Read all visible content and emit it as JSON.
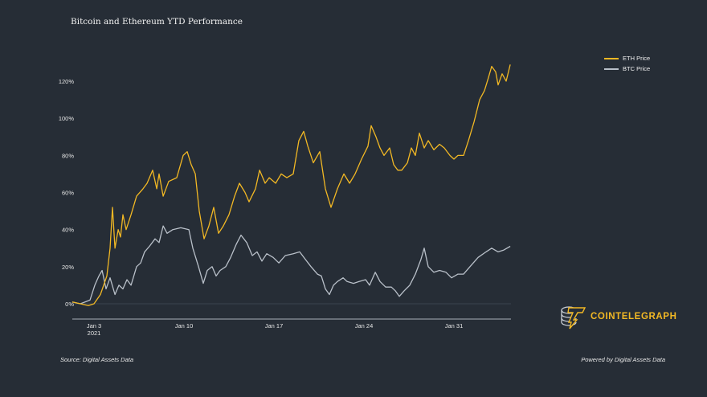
{
  "chart_data": {
    "type": "line",
    "title": "Bitcoin and Ethereum YTD Performance",
    "xlabel": "",
    "ylabel": "",
    "x_units": "days since Jan 1 2021",
    "xlim": [
      0,
      34.6
    ],
    "ylim": [
      -8,
      130
    ],
    "yticks": [
      0,
      20,
      40,
      60,
      80,
      100,
      120
    ],
    "ytick_labels": [
      "0%",
      "20%",
      "40%",
      "60%",
      "80%",
      "100%",
      "120%"
    ],
    "xticks": [
      2,
      9,
      16,
      23,
      30
    ],
    "xtick_labels": [
      "Jan 3",
      "Jan 10",
      "Jan 17",
      "Jan 24",
      "Jan 31"
    ],
    "xtick_year": "2021",
    "legend_position": "top-right",
    "series": [
      {
        "name": "ETH Price",
        "color": "#f2b824",
        "x": [
          0.31,
          0.94,
          1.56,
          2.0,
          2.5,
          3.0,
          3.25,
          3.44,
          3.63,
          3.88,
          4.06,
          4.25,
          4.5,
          4.88,
          5.31,
          5.81,
          6.13,
          6.56,
          6.88,
          7.06,
          7.38,
          7.81,
          8.44,
          8.94,
          9.25,
          9.56,
          9.88,
          10.19,
          10.56,
          10.94,
          11.31,
          11.69,
          12.06,
          12.5,
          12.94,
          13.31,
          13.75,
          14.06,
          14.56,
          14.88,
          15.31,
          15.63,
          16.13,
          16.56,
          17.0,
          17.5,
          17.94,
          18.31,
          18.63,
          19.06,
          19.56,
          20.0,
          20.44,
          20.94,
          21.44,
          21.88,
          22.31,
          22.81,
          23.31,
          23.56,
          23.94,
          24.25,
          24.56,
          25.0,
          25.31,
          25.63,
          25.94,
          26.38,
          26.69,
          27.0,
          27.31,
          27.69,
          28.0,
          28.44,
          28.88,
          29.25,
          29.69,
          30.0,
          30.31,
          30.75,
          31.13,
          31.56,
          32.0,
          32.38,
          32.69,
          32.94,
          33.25,
          33.44,
          33.75,
          34.06,
          34.38
        ],
        "y": [
          1,
          0,
          -1,
          0,
          5,
          15,
          30,
          52,
          30,
          40,
          36,
          48,
          40,
          48,
          58,
          62,
          65,
          72,
          62,
          70,
          58,
          66,
          68,
          80,
          82,
          75,
          70,
          50,
          35,
          42,
          52,
          38,
          42,
          48,
          58,
          65,
          60,
          55,
          62,
          72,
          65,
          68,
          65,
          70,
          68,
          70,
          88,
          93,
          85,
          76,
          82,
          62,
          52,
          62,
          70,
          65,
          70,
          78,
          85,
          96,
          90,
          84,
          80,
          84,
          75,
          72,
          72,
          76,
          84,
          80,
          92,
          84,
          88,
          83,
          86,
          84,
          80,
          78,
          80,
          80,
          88,
          98,
          110,
          115,
          122,
          128,
          125,
          118,
          124,
          120,
          129
        ]
      },
      {
        "name": "BTC Price",
        "color": "#b9c0c9",
        "x": [
          0.31,
          0.94,
          1.69,
          2.06,
          2.38,
          2.63,
          2.94,
          3.25,
          3.63,
          3.94,
          4.25,
          4.56,
          4.88,
          5.31,
          5.63,
          5.94,
          6.31,
          6.75,
          7.06,
          7.38,
          7.69,
          8.13,
          8.75,
          9.38,
          9.69,
          10.13,
          10.5,
          10.81,
          11.19,
          11.5,
          11.81,
          12.25,
          12.63,
          13.06,
          13.44,
          13.88,
          14.31,
          14.69,
          15.06,
          15.44,
          15.94,
          16.38,
          16.88,
          17.5,
          18.0,
          18.44,
          18.88,
          19.38,
          19.69,
          20.0,
          20.31,
          20.63,
          20.94,
          21.38,
          21.69,
          22.19,
          22.63,
          23.13,
          23.44,
          23.88,
          24.25,
          24.69,
          25.13,
          25.44,
          25.75,
          26.13,
          26.56,
          27.0,
          27.44,
          27.69,
          28.0,
          28.44,
          28.88,
          29.38,
          29.81,
          30.31,
          30.75,
          31.25,
          31.88,
          32.5,
          32.94,
          33.44,
          33.88,
          34.38
        ],
        "y": [
          1,
          0,
          2,
          10,
          15,
          18,
          8,
          14,
          5,
          10,
          8,
          13,
          10,
          20,
          22,
          28,
          31,
          35,
          33,
          42,
          38,
          40,
          41,
          40,
          30,
          20,
          11,
          18,
          20,
          15,
          18,
          20,
          25,
          32,
          37,
          33,
          26,
          28,
          23,
          27,
          25,
          22,
          26,
          27,
          28,
          24,
          20,
          16,
          15,
          8,
          5,
          10,
          12,
          14,
          12,
          11,
          12,
          13,
          10,
          17,
          12,
          9,
          9,
          7,
          4,
          7,
          10,
          16,
          24,
          30,
          20,
          17,
          18,
          17,
          14,
          16,
          16,
          20,
          25,
          28,
          30,
          28,
          29,
          31
        ]
      }
    ]
  },
  "footer": {
    "source": "Source: Digital Assets Data",
    "powered_by": "Powered by Digital Assets Data"
  },
  "logo": {
    "text": "COINTELEGRAPH",
    "color": "#f2b824"
  }
}
